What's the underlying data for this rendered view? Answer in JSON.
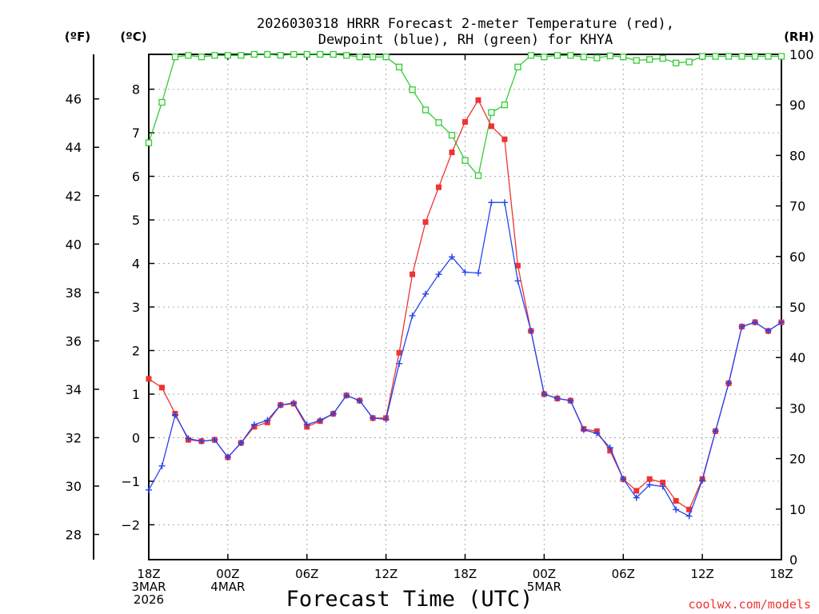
{
  "chart_data": {
    "type": "line",
    "title_line1": "2026030318 HRRR Forecast 2-meter Temperature (red),",
    "title_line2": "Dewpoint (blue), RH (green) for KHYA",
    "xlabel": "Forecast Time (UTC)",
    "credit": "coolwx.com/models",
    "unit_labels": {
      "fahrenheit": "(ºF)",
      "celsius": "(ºC)",
      "rh": "(RH)"
    },
    "ylim_c": [
      -2.8,
      8.8
    ],
    "ylim_rh": [
      0,
      100
    ],
    "y_ticks_c": [
      "-2",
      "-1",
      "0",
      "1",
      "2",
      "3",
      "4",
      "5",
      "6",
      "7",
      "8"
    ],
    "y_ticks_f": [
      "28",
      "30",
      "32",
      "34",
      "36",
      "38",
      "40",
      "42",
      "44",
      "46"
    ],
    "y_ticks_rh": [
      "0",
      "10",
      "20",
      "30",
      "40",
      "50",
      "60",
      "70",
      "80",
      "90",
      "100"
    ],
    "x_ticks": [
      {
        "hour": 0,
        "l1": "18Z",
        "l2": "3MAR",
        "l3": "2026"
      },
      {
        "hour": 6,
        "l1": "00Z",
        "l2": "4MAR",
        "l3": ""
      },
      {
        "hour": 12,
        "l1": "06Z",
        "l2": "",
        "l3": ""
      },
      {
        "hour": 18,
        "l1": "12Z",
        "l2": "",
        "l3": ""
      },
      {
        "hour": 24,
        "l1": "18Z",
        "l2": "",
        "l3": ""
      },
      {
        "hour": 30,
        "l1": "00Z",
        "l2": "5MAR",
        "l3": ""
      },
      {
        "hour": 36,
        "l1": "06Z",
        "l2": "",
        "l3": ""
      },
      {
        "hour": 42,
        "l1": "12Z",
        "l2": "",
        "l3": ""
      },
      {
        "hour": 48,
        "l1": "18Z",
        "l2": "",
        "l3": ""
      }
    ],
    "x_range_hours": [
      0,
      48
    ],
    "series": [
      {
        "name": "Temperature",
        "unit": "C",
        "color": "#ee3333",
        "marker": "filled-square",
        "values": [
          1.35,
          1.15,
          0.55,
          -0.05,
          -0.08,
          -0.05,
          -0.45,
          -0.12,
          0.25,
          0.35,
          0.75,
          0.78,
          0.25,
          0.38,
          0.55,
          0.97,
          0.85,
          0.45,
          0.45,
          1.95,
          3.75,
          4.95,
          5.75,
          6.55,
          7.25,
          7.75,
          7.15,
          6.85,
          3.95,
          2.45,
          1.0,
          0.9,
          0.85,
          0.2,
          0.15,
          -0.3,
          -0.95,
          -1.22,
          -0.95,
          -1.03,
          -1.45,
          -1.65,
          -0.95,
          0.15,
          1.25,
          2.55,
          2.65,
          2.45,
          2.65
        ]
      },
      {
        "name": "Dewpoint",
        "unit": "C",
        "color": "#2244ee",
        "marker": "plus",
        "values": [
          -1.2,
          -0.65,
          0.52,
          -0.02,
          -0.08,
          -0.05,
          -0.45,
          -0.12,
          0.3,
          0.4,
          0.75,
          0.8,
          0.3,
          0.4,
          0.55,
          0.97,
          0.85,
          0.45,
          0.42,
          1.7,
          2.8,
          3.3,
          3.75,
          4.15,
          3.8,
          3.78,
          5.4,
          5.4,
          3.6,
          2.45,
          1.0,
          0.9,
          0.85,
          0.18,
          0.1,
          -0.23,
          -0.95,
          -1.38,
          -1.08,
          -1.12,
          -1.65,
          -1.8,
          -0.98,
          0.15,
          1.25,
          2.55,
          2.65,
          2.45,
          2.65
        ]
      },
      {
        "name": "RH",
        "unit": "%",
        "color": "#33cc33",
        "marker": "open-square",
        "values": [
          82.5,
          90.5,
          99.5,
          99.8,
          99.5,
          99.8,
          99.8,
          99.8,
          100,
          100,
          99.8,
          100,
          100,
          100,
          100,
          99.8,
          99.5,
          99.5,
          99.5,
          97.5,
          93,
          89,
          86.5,
          84,
          79,
          76,
          88.5,
          90,
          97.5,
          99.8,
          99.5,
          99.8,
          99.8,
          99.5,
          99.3,
          99.7,
          99.5,
          98.8,
          99,
          99.2,
          98.3,
          98.5,
          99.6,
          99.6,
          99.6,
          99.6,
          99.6,
          99.6,
          99.6
        ]
      }
    ]
  }
}
